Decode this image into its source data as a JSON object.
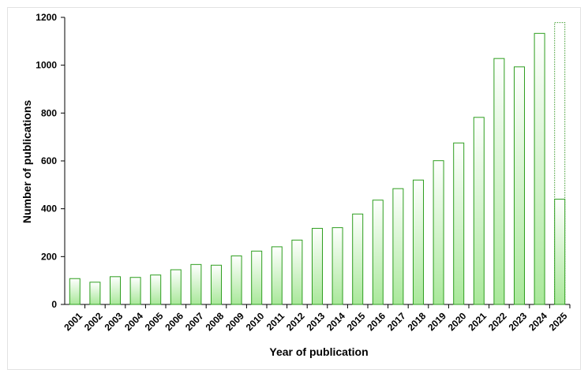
{
  "chart_data": {
    "type": "bar",
    "title": "",
    "xlabel": "Year of publication",
    "ylabel": "Number of publications",
    "ylim": [
      0,
      1200
    ],
    "yticks": [
      0,
      200,
      400,
      600,
      800,
      1000,
      1200
    ],
    "grid": false,
    "categories": [
      "2001",
      "2002",
      "2003",
      "2004",
      "2005",
      "2006",
      "2007",
      "2008",
      "2009",
      "2010",
      "2011",
      "2012",
      "2013",
      "2014",
      "2015",
      "2016",
      "2017",
      "2018",
      "2019",
      "2020",
      "2021",
      "2022",
      "2023",
      "2024",
      "2025"
    ],
    "series": [
      {
        "values": [
          108,
          93,
          116,
          113,
          123,
          145,
          167,
          164,
          203,
          223,
          241,
          269,
          318,
          321,
          378,
          436,
          484,
          520,
          601,
          675,
          782,
          1028,
          993,
          1133,
          440
        ]
      },
      {
        "values": [
          null,
          null,
          null,
          null,
          null,
          null,
          null,
          null,
          null,
          null,
          null,
          null,
          null,
          null,
          null,
          null,
          null,
          null,
          null,
          null,
          null,
          null,
          null,
          null,
          1178
        ]
      }
    ],
    "colors": {
      "bar_edge": "#2e9e1f",
      "bar_fill_top": "#ffffff",
      "bar_fill_bottom": "#a9e89a",
      "projection_edge": "#3a9a2a"
    }
  }
}
